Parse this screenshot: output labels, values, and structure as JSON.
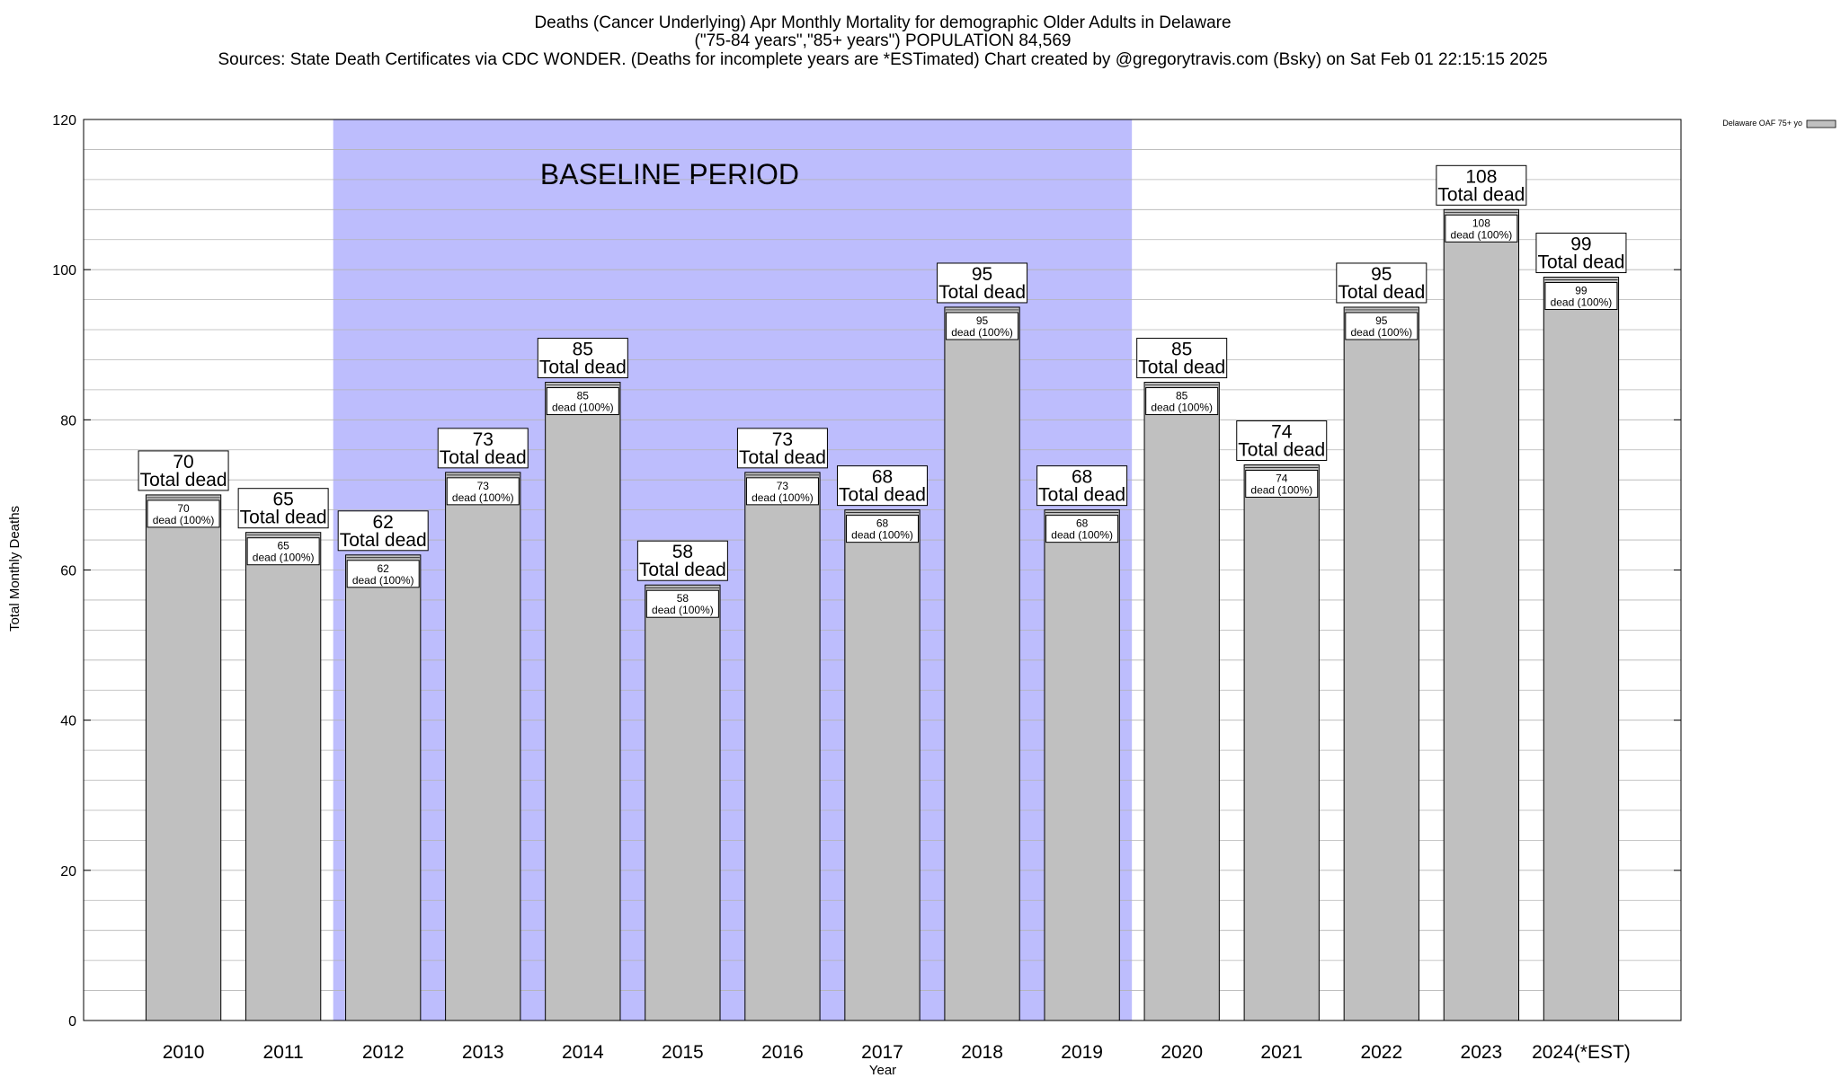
{
  "chart_data": {
    "type": "bar",
    "title_lines": [
      "Deaths (Cancer Underlying) Apr Monthly Mortality for demographic Older Adults in Delaware",
      "(\"75-84 years\",\"85+ years\") POPULATION 84,569",
      "Sources: State Death Certificates via CDC WONDER. (Deaths for incomplete years are *ESTimated)                Chart created by @gregorytravis.com (Bsky) on Sat Feb 01 22:15:15 2025"
    ],
    "xlabel": "Year",
    "ylabel": "Total Monthly Deaths",
    "ylim": [
      0,
      120
    ],
    "y_major_ticks": [
      0,
      20,
      40,
      60,
      80,
      100,
      120
    ],
    "y_minor_step": 4,
    "grid": true,
    "legend_position": "top-right",
    "baseline": {
      "label": "BASELINE PERIOD",
      "start_category": "2012",
      "end_category": "2019",
      "color": "#bdbdfd"
    },
    "categories": [
      "2010",
      "2011",
      "2012",
      "2013",
      "2014",
      "2015",
      "2016",
      "2017",
      "2018",
      "2019",
      "2020",
      "2021",
      "2022",
      "2023",
      "2024(*EST)"
    ],
    "series": [
      {
        "name": "Delaware OAF 75+ yo",
        "color": "#c0c0c0",
        "values": [
          70,
          65,
          62,
          73,
          85,
          58,
          73,
          68,
          95,
          68,
          85,
          74,
          95,
          108,
          99
        ]
      }
    ],
    "total_suffix": "Total dead",
    "inner_suffix": "dead (100%)"
  }
}
